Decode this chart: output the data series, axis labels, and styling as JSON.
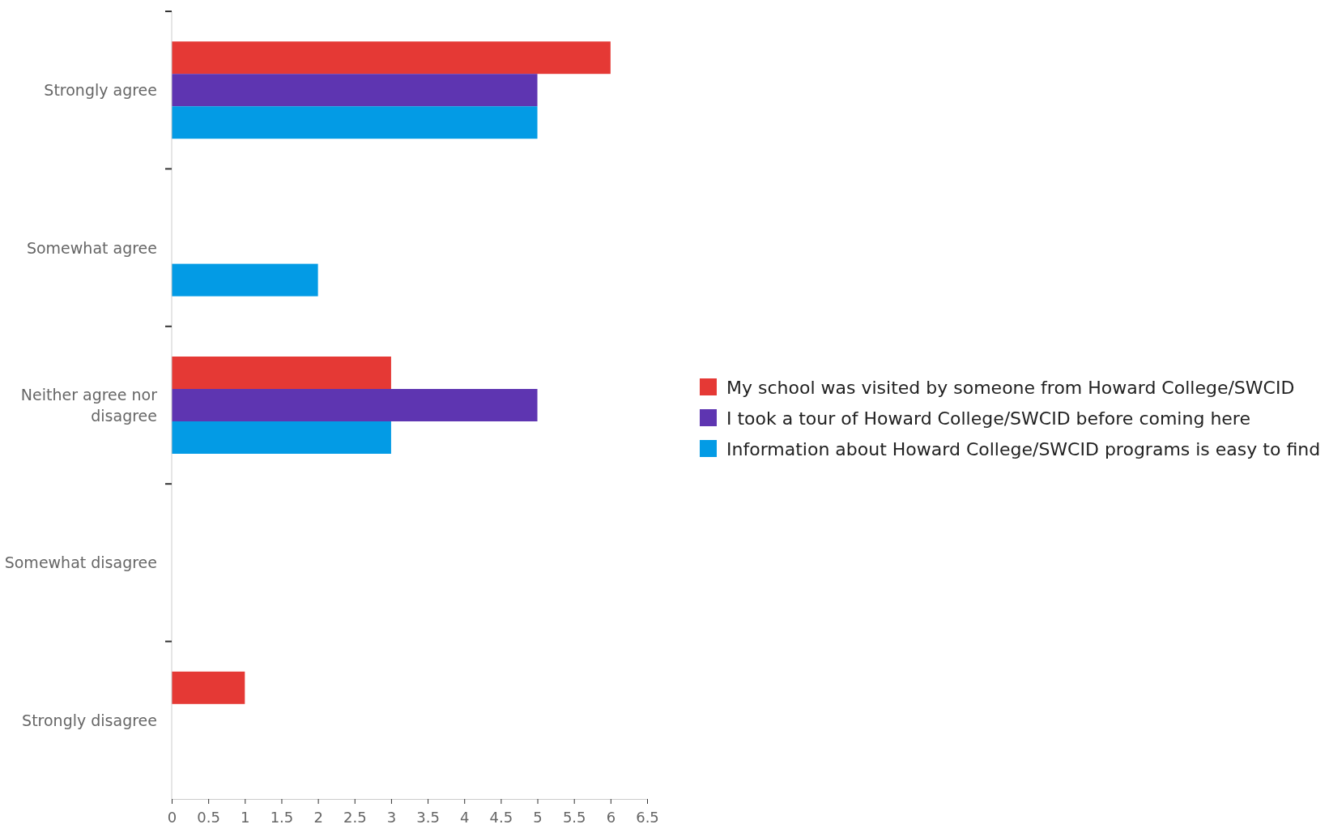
{
  "chart_data": {
    "type": "bar",
    "orientation": "horizontal",
    "categories": [
      "Strongly agree",
      "Somewhat agree",
      "Neither agree nor disagree",
      "Somewhat disagree",
      "Strongly disagree"
    ],
    "series": [
      {
        "name": "My school was visited by someone from Howard College/SWCID",
        "color": "#e53935",
        "values": [
          6,
          0,
          3,
          0,
          1
        ]
      },
      {
        "name": "I took a tour of Howard College/SWCID before coming here",
        "color": "#5e35b1",
        "values": [
          5,
          0,
          5,
          0,
          0
        ]
      },
      {
        "name": "Information about Howard College/SWCID programs is easy to find",
        "color": "#039be5",
        "values": [
          5,
          2,
          3,
          0,
          0
        ]
      }
    ],
    "xlim": [
      0,
      6.5
    ],
    "xticks": [
      0,
      0.5,
      1,
      1.5,
      2,
      2.5,
      3,
      3.5,
      4,
      4.5,
      5,
      5.5,
      6,
      6.5
    ],
    "grid": false,
    "legend": "right"
  }
}
